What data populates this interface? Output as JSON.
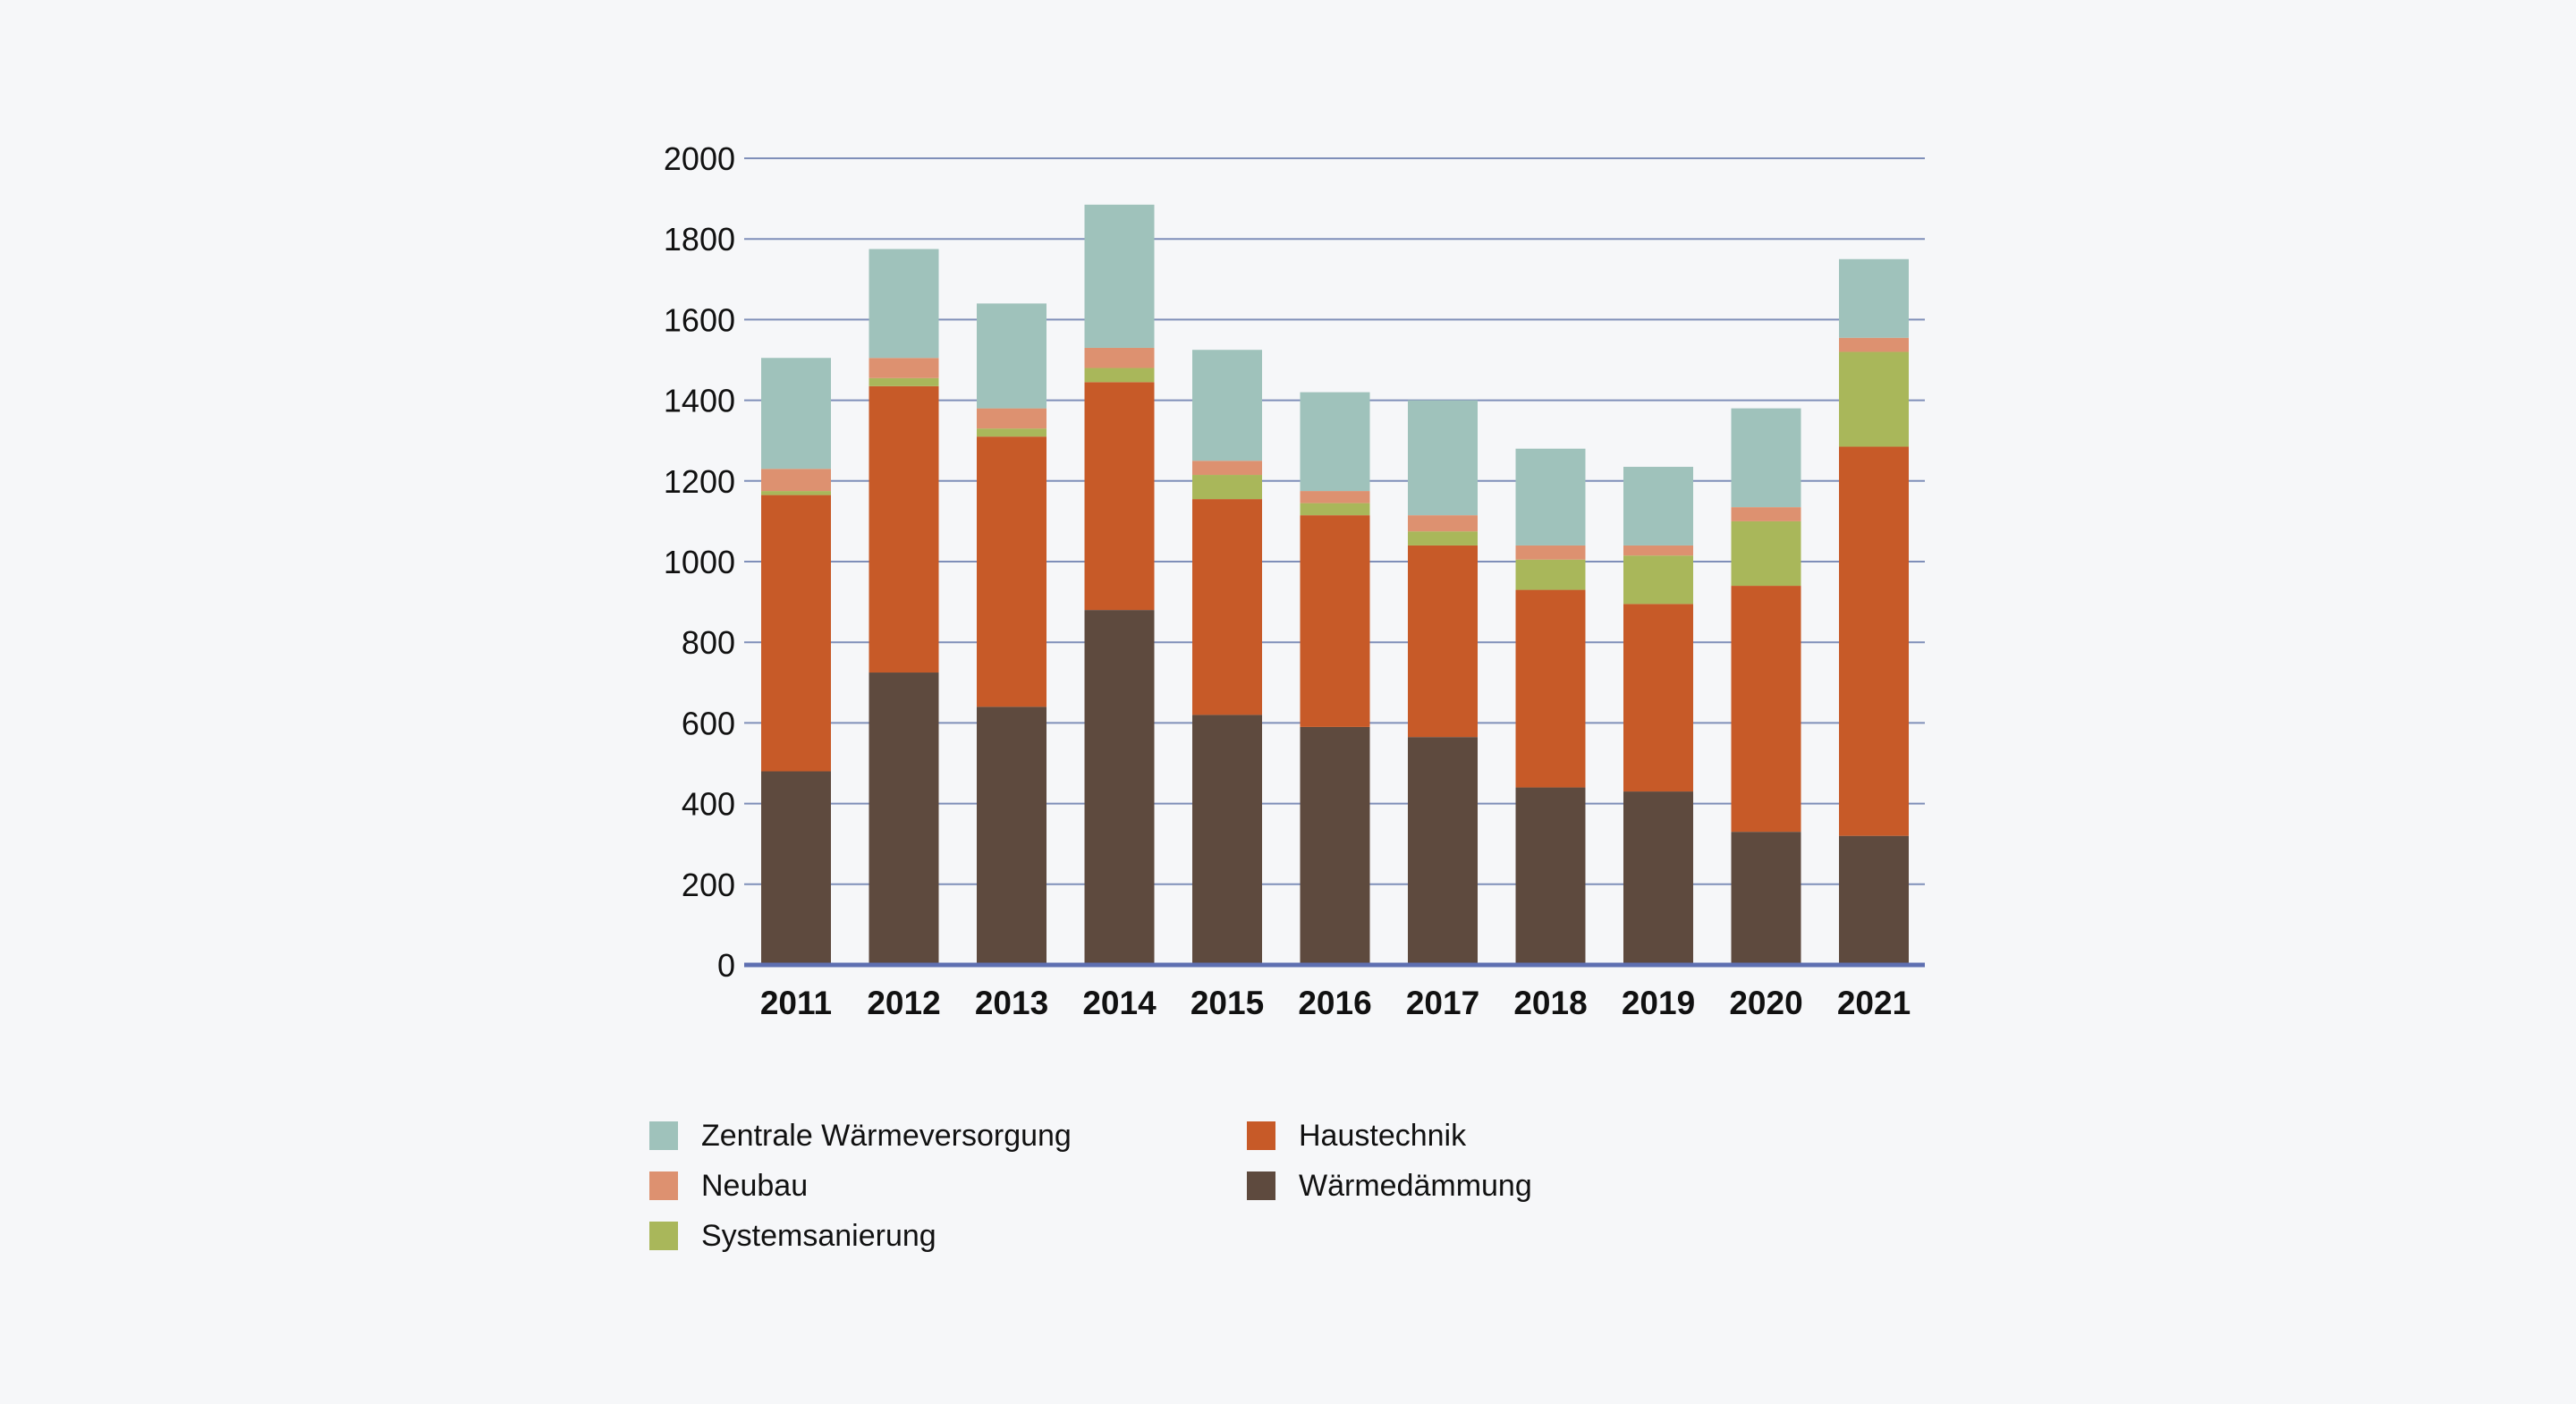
{
  "chart_data": {
    "type": "bar",
    "stacked": true,
    "categories": [
      "2011",
      "2012",
      "2013",
      "2014",
      "2015",
      "2016",
      "2017",
      "2018",
      "2019",
      "2020",
      "2021"
    ],
    "ylim": [
      0,
      2000
    ],
    "yticks": [
      0,
      200,
      400,
      600,
      800,
      1000,
      1200,
      1400,
      1600,
      1800,
      2000
    ],
    "grid": true,
    "legend_position": "bottom",
    "series": [
      {
        "name": "Wärmedämmung",
        "color": "#5e4a3e",
        "values": [
          480,
          725,
          640,
          880,
          620,
          590,
          565,
          440,
          430,
          330,
          320
        ]
      },
      {
        "name": "Haustechnik",
        "color": "#c75a28",
        "values": [
          685,
          710,
          670,
          565,
          535,
          525,
          475,
          490,
          465,
          610,
          965
        ]
      },
      {
        "name": "Systemsanierung",
        "color": "#a9b75a",
        "values": [
          10,
          20,
          20,
          35,
          60,
          30,
          35,
          75,
          120,
          160,
          235
        ]
      },
      {
        "name": "Neubau",
        "color": "#dd9170",
        "values": [
          55,
          50,
          50,
          50,
          35,
          30,
          40,
          35,
          25,
          35,
          35
        ]
      },
      {
        "name": "Zentrale Wärmeversorgung",
        "color": "#9fc2bb",
        "values": [
          275,
          270,
          260,
          355,
          275,
          245,
          285,
          240,
          195,
          245,
          195
        ]
      }
    ]
  },
  "legend": {
    "items": [
      {
        "name": "Zentrale Wärmeversorgung",
        "color": "#9fc2bb"
      },
      {
        "name": "Haustechnik",
        "color": "#c75a28"
      },
      {
        "name": "Neubau",
        "color": "#dd9170"
      },
      {
        "name": "Wärmedämmung",
        "color": "#5e4a3e"
      },
      {
        "name": "Systemsanierung",
        "color": "#a9b75a"
      }
    ]
  },
  "colors": {
    "gridline": "#7f8fb9",
    "baseline": "#5e6fb1",
    "background": "#f6f7f9"
  }
}
